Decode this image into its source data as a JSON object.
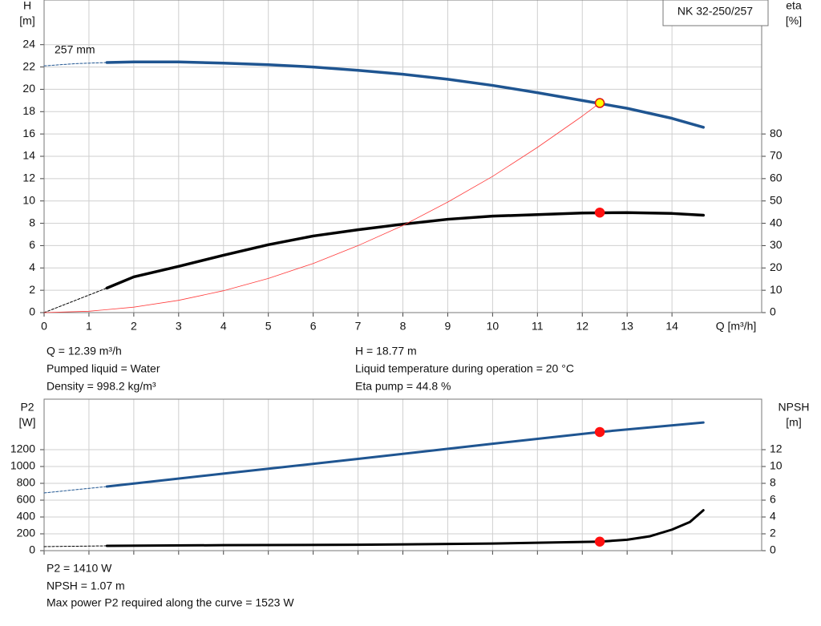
{
  "chart_data": [
    {
      "type": "line",
      "title": "NK 32-250/257",
      "curve_label": "257 mm",
      "xlabel": "Q [m³/h]",
      "ylabel": "H",
      "yunit": "[m]",
      "y2label": "eta",
      "y2unit": "[%]",
      "xlim": [
        0,
        16
      ],
      "xticks": [
        0,
        1,
        2,
        3,
        4,
        5,
        6,
        7,
        8,
        9,
        10,
        11,
        12,
        13,
        14
      ],
      "xtick_labels": true,
      "ylim": [
        0,
        28
      ],
      "yticks": [
        0,
        2,
        4,
        6,
        8,
        10,
        12,
        14,
        16,
        18,
        20,
        22,
        24
      ],
      "y2lim": [
        0,
        140
      ],
      "y2ticks": [
        0,
        10,
        20,
        30,
        40,
        50,
        60,
        70,
        80
      ],
      "grid": true,
      "series": [
        {
          "x": [
            0,
            0.7,
            1.4
          ],
          "values": [
            22.1,
            22.3,
            22.4
          ],
          "color": "#1f5591",
          "width": 1,
          "dashed": true
        },
        {
          "x": [
            1.4,
            2,
            3,
            4,
            5,
            6,
            7,
            8,
            9,
            10,
            11,
            12,
            13,
            14,
            14.7
          ],
          "values": [
            22.4,
            22.45,
            22.45,
            22.35,
            22.2,
            22.0,
            21.7,
            21.35,
            20.9,
            20.35,
            19.7,
            19.0,
            18.3,
            17.4,
            16.6
          ],
          "color": "#1f5591",
          "width": 3.5
        },
        {
          "x": [
            0,
            1.4
          ],
          "values": [
            0,
            11
          ],
          "color": "#000000",
          "width": 1,
          "dashed": true,
          "axis": "y2"
        },
        {
          "x": [
            1.4,
            2,
            3,
            4,
            5,
            6,
            7,
            8,
            9,
            10,
            11,
            12,
            13,
            14,
            14.7
          ],
          "values": [
            11,
            16,
            20.7,
            25.7,
            30.4,
            34.3,
            37.1,
            39.6,
            41.8,
            43.2,
            43.9,
            44.6,
            44.8,
            44.4,
            43.6
          ],
          "color": "#000000",
          "width": 3.5,
          "axis": "y2"
        },
        {
          "x": [
            0,
            1,
            2,
            3,
            4,
            5,
            6,
            7,
            8,
            9,
            10,
            11,
            12,
            12.39
          ],
          "values": [
            0,
            0.12,
            0.49,
            1.1,
            1.96,
            3.06,
            4.4,
            6.0,
            7.8,
            9.9,
            12.2,
            14.8,
            17.6,
            18.77
          ],
          "color": "#ff3b3b",
          "width": 0.8
        },
        {
          "type": "scatter",
          "x": [
            12.39
          ],
          "values": [
            18.77
          ],
          "color": "#ffff00",
          "edgecolor": "#e01010"
        },
        {
          "type": "scatter",
          "x": [
            12.39
          ],
          "values": [
            44.8
          ],
          "color": "#ff1010",
          "edgecolor": "#ff1010",
          "axis": "y2"
        }
      ],
      "annotations": [
        "Q = 12.39 m³/h",
        "Pumped liquid = Water",
        "Density = 998.2 kg/m³",
        "H = 18.77 m",
        "Liquid temperature during operation = 20 °C",
        "Eta pump = 44.8 %"
      ]
    },
    {
      "type": "line",
      "ylabel": "P2",
      "yunit": "[W]",
      "y2label": "NPSH",
      "y2unit": "[m]",
      "xlim": [
        0,
        16
      ],
      "xticks": [
        0,
        1,
        2,
        3,
        4,
        5,
        6,
        7,
        8,
        9,
        10,
        11,
        12,
        13,
        14
      ],
      "xtick_labels": false,
      "ylim": [
        0,
        1800
      ],
      "yticks": [
        0,
        200,
        400,
        600,
        800,
        1000,
        1200
      ],
      "y2lim": [
        0,
        18
      ],
      "y2ticks": [
        0,
        2,
        4,
        6,
        8,
        10,
        12
      ],
      "grid": true,
      "series": [
        {
          "x": [
            0,
            1.4
          ],
          "values": [
            686,
            762
          ],
          "color": "#1f5591",
          "width": 1,
          "dashed": true
        },
        {
          "x": [
            1.4,
            4,
            7,
            10,
            12.39,
            14.7
          ],
          "values": [
            762,
            915,
            1090,
            1270,
            1410,
            1523
          ],
          "color": "#1f5591",
          "width": 3
        },
        {
          "x": [
            0,
            1.4
          ],
          "values": [
            0.48,
            0.57
          ],
          "color": "#000000",
          "width": 1,
          "dashed": true,
          "axis": "y2"
        },
        {
          "x": [
            1.4,
            4,
            7,
            10,
            12.39,
            13,
            13.5,
            14,
            14.4,
            14.7
          ],
          "values": [
            0.57,
            0.65,
            0.7,
            0.85,
            1.07,
            1.3,
            1.7,
            2.5,
            3.4,
            4.8
          ],
          "color": "#000000",
          "width": 3,
          "axis": "y2"
        },
        {
          "type": "scatter",
          "x": [
            12.39
          ],
          "values": [
            1410
          ],
          "color": "#ff1010",
          "edgecolor": "#ff1010"
        },
        {
          "type": "scatter",
          "x": [
            12.39
          ],
          "values": [
            1.07
          ],
          "color": "#ff1010",
          "edgecolor": "#ff1010",
          "axis": "y2"
        }
      ],
      "annotations": [
        "P2 = 1410 W",
        "NPSH = 1.07 m",
        "Max power P2 required along the curve = 1523 W"
      ]
    }
  ]
}
